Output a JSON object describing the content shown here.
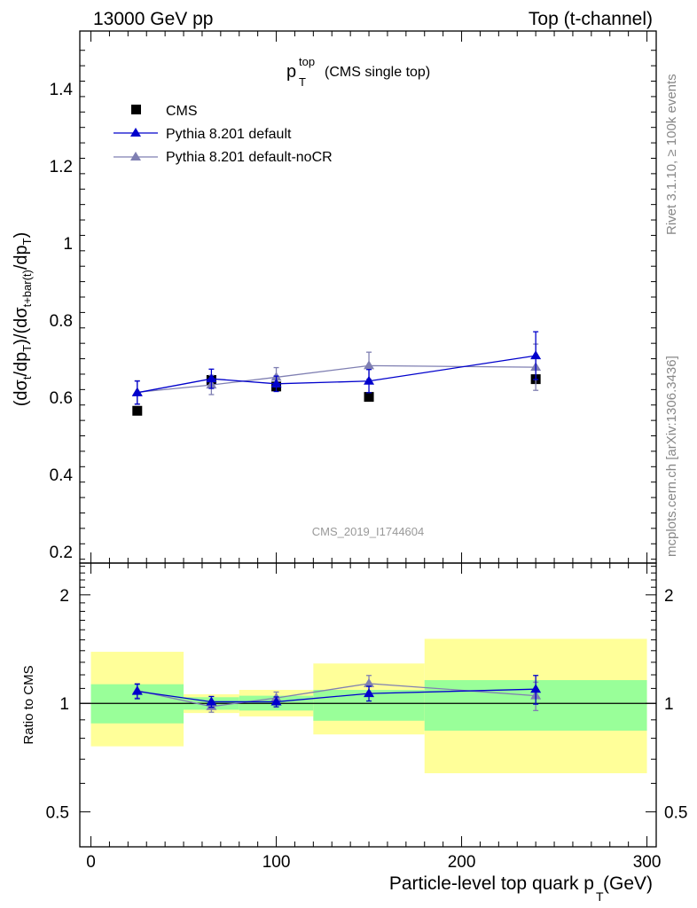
{
  "header": {
    "left": "13000 GeV pp",
    "right": "Top (t-channel)"
  },
  "side_text": {
    "rivet": "Rivet 3.1.10, ≥ 100k events",
    "mcplots": "mcplots.cern.ch [arXiv:1306.3436]"
  },
  "plot_title": {
    "main": "p",
    "sup": "top",
    "sub": "T",
    "suffix": "(CMS single top)"
  },
  "watermark": "CMS_2019_I1744604",
  "legend": [
    {
      "label": "CMS"
    },
    {
      "label": "Pythia 8.201 default"
    },
    {
      "label": "Pythia 8.201 default-noCR"
    }
  ],
  "y_axis_label": "(dσt/dpT)/(dσt+bar(t)/dpT)",
  "ratio_axis_label": "Ratio to CMS",
  "x_axis_label": {
    "main": "Particle-level top quark p",
    "sub": "T",
    "unit": "(GeV)"
  },
  "colors": {
    "cms": "#000000",
    "default": "#0000cc",
    "nocr": "#7f7fb2",
    "band_inner": "#99ff99",
    "band_outer": "#ffff99"
  },
  "chart_data": {
    "type": "scatter",
    "xlim": [
      -6,
      305
    ],
    "main": {
      "ylim": [
        0.17,
        1.55
      ],
      "yticks": [
        0.2,
        0.4,
        0.6,
        0.8,
        1.0,
        1.2,
        1.4
      ],
      "ytick_labels": [
        "0.2",
        "0.4",
        "0.6",
        "0.8",
        "1",
        "1.2",
        "1.4"
      ],
      "bins": [
        [
          0,
          50
        ],
        [
          50,
          80
        ],
        [
          80,
          120
        ],
        [
          120,
          180
        ],
        [
          180,
          300
        ]
      ],
      "x": [
        25,
        65,
        100,
        150,
        240
      ],
      "series": [
        {
          "name": "CMS",
          "marker": "square",
          "values": [
            0.565,
            0.645,
            0.628,
            0.601,
            0.647
          ]
        },
        {
          "name": "Pythia 8.201 default",
          "marker": "triangle",
          "values": [
            0.612,
            0.648,
            0.635,
            0.642,
            0.708
          ],
          "errors": [
            0.03,
            0.025,
            0.02,
            0.03,
            0.062
          ]
        },
        {
          "name": "Pythia 8.201 default-noCR",
          "marker": "triangle",
          "values": [
            0.613,
            0.632,
            0.652,
            0.682,
            0.678
          ],
          "errors": [
            0.03,
            0.025,
            0.025,
            0.035,
            0.06
          ]
        }
      ]
    },
    "ratio": {
      "ylim": [
        0.4,
        2.45
      ],
      "yticks": [
        0.5,
        1,
        2
      ],
      "ytick_labels": [
        "0.5",
        "1",
        "2"
      ],
      "bands": [
        {
          "x": [
            0,
            50
          ],
          "inner": [
            0.88,
            1.13
          ],
          "outer": [
            0.76,
            1.39
          ]
        },
        {
          "x": [
            50,
            80
          ],
          "inner": [
            0.96,
            1.04
          ],
          "outer": [
            0.94,
            1.06
          ]
        },
        {
          "x": [
            80,
            120
          ],
          "inner": [
            0.955,
            1.05
          ],
          "outer": [
            0.92,
            1.09
          ]
        },
        {
          "x": [
            120,
            180
          ],
          "inner": [
            0.895,
            1.09
          ],
          "outer": [
            0.82,
            1.29
          ]
        },
        {
          "x": [
            180,
            300
          ],
          "inner": [
            0.84,
            1.16
          ],
          "outer": [
            0.64,
            1.51
          ]
        }
      ],
      "series": [
        {
          "name": "Pythia 8.201 default",
          "values": [
            1.08,
            1.01,
            1.01,
            1.065,
            1.095
          ],
          "errors": [
            0.05,
            0.035,
            0.032,
            0.05,
            0.1
          ]
        },
        {
          "name": "Pythia 8.201 default-noCR",
          "values": [
            1.085,
            0.98,
            1.035,
            1.135,
            1.05
          ],
          "errors": [
            0.05,
            0.035,
            0.04,
            0.06,
            0.095
          ]
        }
      ]
    },
    "xticks": [
      0,
      100,
      200,
      300
    ],
    "xtick_labels": [
      "0",
      "100",
      "200",
      "300"
    ]
  }
}
